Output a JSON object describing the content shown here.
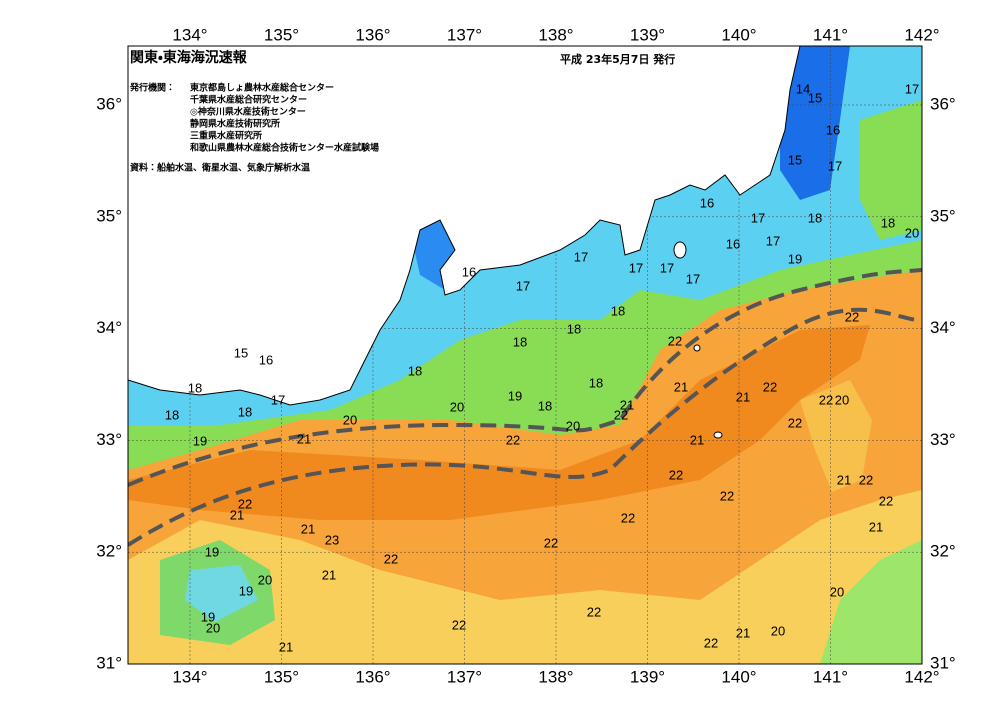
{
  "header": {
    "title": "関東・東海海況速報",
    "date": "平成 23年5月7日 発行"
  },
  "issuers": {
    "label": "発行機関：",
    "names": [
      "東京都島しょ農林水産総合センター",
      "千葉県水産総合研究センター",
      "◎神奈川県水産技術センター",
      "静岡県水産技術研究所",
      "三重県水産研究所",
      "和歌山県農林水産総合技術センター水産試験場"
    ]
  },
  "source": "資料：船舶水温、衛星水温、気象庁解析水温",
  "lon_labels": [
    "134°",
    "135°",
    "136°",
    "137°",
    "138°",
    "139°",
    "140°",
    "141°",
    "142°"
  ],
  "lat_labels": [
    "36°",
    "35°",
    "34°",
    "33°",
    "32°",
    "31°"
  ],
  "temperature_labels": [
    14,
    15,
    17,
    16,
    15,
    17,
    16,
    17,
    18,
    18,
    20,
    16,
    17,
    19,
    17,
    16,
    17,
    17,
    17,
    17,
    18,
    18,
    22,
    22,
    15,
    16,
    18,
    18,
    18,
    18,
    21,
    22,
    21,
    19,
    18,
    20,
    21,
    22,
    22,
    20,
    17,
    18,
    18,
    20,
    22,
    20,
    21,
    19,
    21,
    22,
    22,
    21,
    22,
    22,
    22,
    22,
    21,
    22,
    21,
    21,
    23,
    22,
    19,
    22,
    21,
    20,
    19,
    20,
    22,
    19,
    20,
    22,
    21,
    20,
    22,
    21
  ]
}
